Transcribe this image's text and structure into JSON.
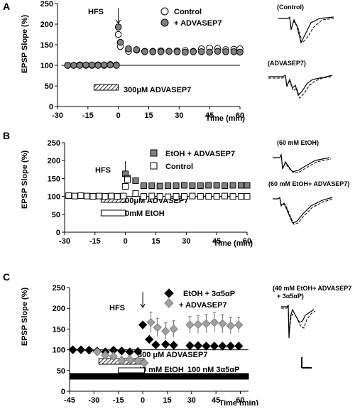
{
  "figure": {
    "trace_scale_label": ""
  },
  "chart_data": [
    {
      "type": "scatter",
      "panel_letter": "A",
      "title": "",
      "xlabel": "Time (min)",
      "ylabel": "EPSP Slope (%)",
      "xlim": [
        -30,
        60
      ],
      "ylim": [
        0,
        250
      ],
      "xticks": [
        -30,
        -15,
        0,
        15,
        30,
        45,
        60
      ],
      "yticks": [
        0,
        50,
        100,
        150,
        200,
        250
      ],
      "grid": false,
      "legend_position": "top-right",
      "reference_line": 100,
      "event_label": "HFS",
      "event_x": 0,
      "bars": [
        {
          "label": "300μM ADVASEP7",
          "x0": -12,
          "x1": 0,
          "fill": "hatched"
        }
      ],
      "series": [
        {
          "name": "Control",
          "marker": "circle",
          "fill": "#ffffff",
          "x": [
            -25,
            -22,
            -19,
            -16,
            -13,
            -10,
            -7,
            -4,
            -1,
            0,
            1,
            5,
            9,
            13,
            17,
            21,
            25,
            29,
            33,
            37,
            41,
            45,
            49,
            53,
            57,
            60
          ],
          "y": [
            100,
            100,
            101,
            100,
            100,
            101,
            100,
            102,
            101,
            175,
            146,
            134,
            137,
            134,
            134,
            135,
            134,
            135,
            136,
            134,
            140,
            142,
            141,
            138,
            139,
            140
          ]
        },
        {
          "name": "+ ADVASEP7",
          "marker": "circle",
          "fill": "#808080",
          "x": [
            -25,
            -22,
            -19,
            -16,
            -13,
            -10,
            -7,
            -4,
            -1,
            0,
            1,
            5,
            9,
            13,
            17,
            21,
            25,
            29,
            33,
            37,
            41,
            45,
            49,
            53,
            57,
            60
          ],
          "y": [
            100,
            100,
            100,
            101,
            101,
            100,
            101,
            101,
            100,
            193,
            156,
            140,
            138,
            133,
            133,
            133,
            134,
            133,
            132,
            133,
            133,
            132,
            134,
            133,
            133,
            132
          ]
        }
      ],
      "traces": [
        {
          "label": "(Control)"
        },
        {
          "label": "(ADVASEP7)"
        }
      ]
    },
    {
      "type": "scatter",
      "panel_letter": "B",
      "title": "",
      "xlabel": "Time (min)",
      "ylabel": "EPSP Slope (%)",
      "xlim": [
        -30,
        60
      ],
      "ylim": [
        0,
        250
      ],
      "xticks": [
        -30,
        -15,
        0,
        15,
        30,
        45,
        60
      ],
      "yticks": [
        0,
        50,
        100,
        150,
        200,
        250
      ],
      "grid": false,
      "legend_position": "top-right",
      "reference_line": 100,
      "event_label": "HFS",
      "event_x": 0,
      "bars": [
        {
          "label": "300μM ADVASEP7",
          "x0": -12,
          "x1": 0,
          "fill": "hatched"
        },
        {
          "label": "60mM EtOH",
          "x0": -12,
          "x1": 0,
          "fill": "open"
        }
      ],
      "series": [
        {
          "name": "EtOH + ADVASEP7",
          "marker": "square",
          "fill": "#808080",
          "x": [
            0,
            1,
            5,
            9,
            13,
            17,
            21,
            25,
            29,
            33,
            37,
            41,
            45,
            49,
            53,
            57,
            60
          ],
          "y": [
            163,
            151,
            144,
            130,
            130,
            129,
            130,
            130,
            131,
            130,
            130,
            131,
            131,
            130,
            131,
            131,
            131
          ]
        },
        {
          "name": "Control",
          "marker": "square",
          "fill": "#ffffff",
          "x": [
            -28,
            -25,
            -22,
            -19,
            -16,
            -13,
            -10,
            -7,
            -4,
            -1,
            0,
            1,
            5,
            9,
            13,
            17,
            21,
            25,
            29,
            33,
            37,
            41,
            45,
            49,
            53,
            57,
            60
          ],
          "y": [
            102,
            101,
            102,
            101,
            100,
            101,
            100,
            101,
            100,
            101,
            128,
            147,
            108,
            100,
            101,
            100,
            99,
            100,
            100,
            101,
            100,
            100,
            100,
            101,
            100,
            100,
            100
          ]
        }
      ],
      "traces": [
        {
          "label": "(60 mM EtOH)"
        },
        {
          "label": "(60 mM EtOH+ ADVASEP7)"
        }
      ]
    },
    {
      "type": "scatter",
      "panel_letter": "C",
      "title": "",
      "xlabel": "Time (min)",
      "ylabel": "EPSP Slope (%)",
      "xlim": [
        -45,
        65
      ],
      "ylim": [
        0,
        250
      ],
      "xticks": [
        -45,
        -30,
        -15,
        0,
        15,
        30,
        45,
        60
      ],
      "yticks": [
        0,
        50,
        100,
        150,
        200,
        250
      ],
      "grid": false,
      "legend_position": "top-right",
      "reference_line": 100,
      "event_label": "HFS",
      "event_x": 0,
      "bars": [
        {
          "label": "300 μM ADVASEP7",
          "x0": -27,
          "x1": 1,
          "fill": "hatched"
        },
        {
          "label": "40 mM EtOH",
          "x0": -15,
          "x1": 1,
          "fill": "open"
        },
        {
          "label": "100 nM 3α5αP",
          "x0": -45,
          "x1": 65,
          "fill": "solid"
        }
      ],
      "series": [
        {
          "name": "EtOH + 3α5αP",
          "marker": "diamond",
          "fill": "#000000",
          "x": [
            -43,
            -38,
            -33,
            -28,
            -23,
            -18,
            -13,
            -8,
            -3,
            0,
            4,
            8,
            14,
            19,
            29,
            34,
            39,
            44,
            49,
            54,
            59
          ],
          "y": [
            100,
            100,
            99,
            97,
            95,
            99,
            97,
            95,
            96,
            160,
            125,
            112,
            113,
            111,
            110,
            110,
            109,
            109,
            109,
            109,
            109
          ]
        },
        {
          "name": "+ ADVASEP7",
          "marker": "diamond",
          "fill": "#a0a0a0",
          "x": [
            -28,
            -23,
            -18,
            -13,
            -8,
            -3,
            1,
            5,
            9,
            14,
            19,
            29,
            34,
            39,
            44,
            49,
            54,
            59
          ],
          "y": [
            95,
            87,
            84,
            74,
            77,
            73,
            68,
            166,
            154,
            145,
            150,
            160,
            161,
            163,
            166,
            163,
            158,
            160
          ],
          "error": [
            5,
            10,
            10,
            10,
            10,
            8,
            6,
            25,
            22,
            20,
            20,
            20,
            22,
            22,
            24,
            22,
            20,
            18
          ]
        }
      ],
      "traces": [
        {
          "label": "(40 mM EtOH+ ADVASEP7\n+ 3α5αP)"
        }
      ]
    }
  ]
}
